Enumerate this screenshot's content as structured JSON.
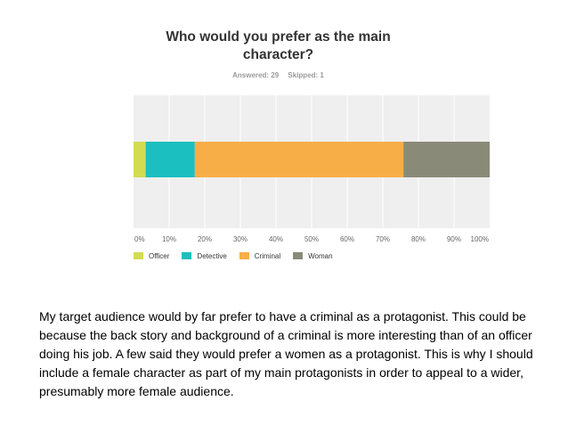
{
  "chart_data": {
    "type": "bar",
    "orientation": "horizontal-stacked",
    "title": "Who would you prefer as the main character?",
    "answered_label": "Answered: 29",
    "skipped_label": "Skipped: 1",
    "xlim": [
      0,
      100
    ],
    "x_ticks": [
      "0%",
      "10%",
      "20%",
      "30%",
      "40%",
      "50%",
      "60%",
      "70%",
      "80%",
      "90%",
      "100%"
    ],
    "grid": true,
    "legend_position": "bottom-left",
    "series": [
      {
        "name": "Officer",
        "values": [
          3.4
        ],
        "color": "#d3dc50"
      },
      {
        "name": "Detective",
        "values": [
          13.8
        ],
        "color": "#1bbfbf"
      },
      {
        "name": "Criminal",
        "values": [
          58.6
        ],
        "color": "#f8ae47"
      },
      {
        "name": "Woman",
        "values": [
          24.2
        ],
        "color": "#8a8a78"
      }
    ]
  },
  "description": "My target audience would by far prefer to have a criminal as a protagonist. This could be because the back story and background of a criminal is more interesting than of an officer doing his job. A few said they would prefer a women as a protagonist. This is why I should include a female character as part of my main protagonists in order to appeal to a wider, presumably more female audience."
}
